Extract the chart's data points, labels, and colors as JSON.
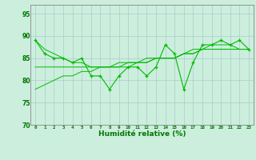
{
  "x": [
    0,
    1,
    2,
    3,
    4,
    5,
    6,
    7,
    8,
    9,
    10,
    11,
    12,
    13,
    14,
    15,
    16,
    17,
    18,
    19,
    20,
    21,
    22,
    23
  ],
  "y_main": [
    89,
    86,
    85,
    85,
    84,
    85,
    81,
    81,
    78,
    81,
    83,
    83,
    81,
    83,
    88,
    86,
    78,
    84,
    88,
    88,
    89,
    88,
    89,
    87
  ],
  "y_trend1": [
    78,
    79,
    80,
    81,
    81,
    82,
    82,
    83,
    83,
    83,
    84,
    84,
    84,
    85,
    85,
    85,
    86,
    86,
    87,
    87,
    87,
    87,
    87,
    87
  ],
  "y_trend2": [
    89,
    87,
    86,
    85,
    84,
    84,
    83,
    83,
    83,
    83,
    83,
    84,
    84,
    85,
    85,
    85,
    86,
    87,
    87,
    88,
    88,
    88,
    87,
    87
  ],
  "y_trend3": [
    83,
    83,
    83,
    83,
    83,
    83,
    83,
    83,
    83,
    84,
    84,
    84,
    85,
    85,
    85,
    85,
    86,
    86,
    87,
    87,
    87,
    87,
    87,
    87
  ],
  "line_color": "#00bb00",
  "bg_color": "#cceedd",
  "grid_color": "#aacccc",
  "xlabel": "Humidité relative (%)",
  "ylim": [
    70,
    97
  ],
  "yticks": [
    70,
    75,
    80,
    85,
    90,
    95
  ],
  "xlim": [
    -0.5,
    23.5
  ],
  "figsize": [
    3.2,
    2.0
  ],
  "dpi": 100
}
